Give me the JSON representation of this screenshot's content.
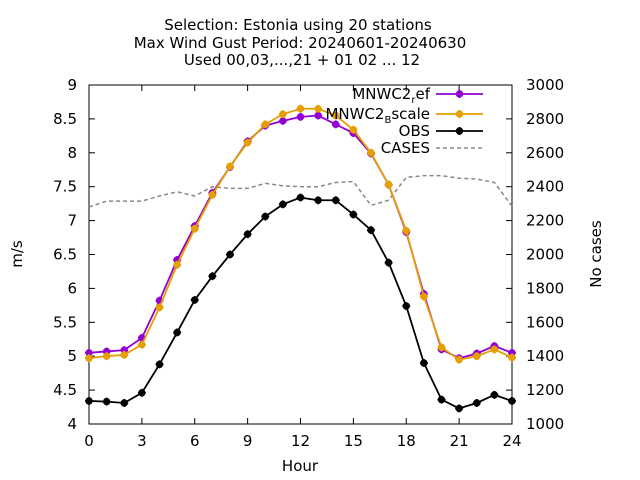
{
  "chart_data": {
    "type": "line",
    "title_lines": [
      "Selection: Estonia using    20 stations",
      "Max Wind Gust   Period: 20240601-20240630",
      "Used 00,03,...,21 + 01 02 ... 12"
    ],
    "xlabel": "Hour",
    "ylabel": "m/s",
    "y2label": "No cases",
    "xlim": [
      0,
      24
    ],
    "ylim": [
      4,
      9
    ],
    "y2lim": [
      1000,
      3000
    ],
    "xticks": [
      "0",
      "3",
      "6",
      "9",
      "12",
      "15",
      "18",
      "21",
      "24"
    ],
    "yticks": [
      "4",
      "4.5",
      "5",
      "5.5",
      "6",
      "6.5",
      "7",
      "7.5",
      "8",
      "8.5",
      "9"
    ],
    "y2ticks": [
      "1000",
      "1200",
      "1400",
      "1600",
      "1800",
      "2000",
      "2200",
      "2400",
      "2600",
      "2800",
      "3000"
    ],
    "grid": false,
    "legend_position": "top-right",
    "x": [
      0,
      1,
      2,
      3,
      4,
      5,
      6,
      7,
      8,
      9,
      10,
      11,
      12,
      13,
      14,
      15,
      16,
      17,
      18,
      19,
      20,
      21,
      22,
      23,
      24
    ],
    "series": [
      {
        "name": "MNWC2_ref",
        "legend_main": "MNWC2",
        "legend_sub": "r",
        "legend_rest": "ef",
        "color": "#9400d3",
        "axis": "y1",
        "style": "line-points",
        "values": [
          5.05,
          5.07,
          5.09,
          5.27,
          5.82,
          6.42,
          6.92,
          7.41,
          7.79,
          8.17,
          8.4,
          8.47,
          8.53,
          8.55,
          8.42,
          8.29,
          7.99,
          7.53,
          6.83,
          5.92,
          5.1,
          4.97,
          5.04,
          5.15,
          5.05
        ]
      },
      {
        "name": "MNWC2_Bscale",
        "legend_main": "MNWC2",
        "legend_sub": "B",
        "legend_rest": "scale",
        "color": "#e69f00",
        "axis": "y1",
        "style": "line-points",
        "values": [
          4.97,
          5.0,
          5.02,
          5.17,
          5.72,
          6.35,
          6.88,
          7.38,
          7.8,
          8.15,
          8.42,
          8.57,
          8.65,
          8.65,
          8.55,
          8.34,
          8.0,
          7.53,
          6.85,
          5.88,
          5.13,
          4.95,
          5.0,
          5.1,
          4.98
        ]
      },
      {
        "name": "OBS",
        "legend_main": "OBS",
        "legend_sub": "",
        "legend_rest": "",
        "color": "#000000",
        "axis": "y1",
        "style": "line-points",
        "values": [
          4.34,
          4.33,
          4.31,
          4.46,
          4.88,
          5.35,
          5.83,
          6.18,
          6.5,
          6.8,
          7.06,
          7.24,
          7.34,
          7.3,
          7.3,
          7.09,
          6.86,
          6.38,
          5.74,
          4.9,
          4.36,
          4.23,
          4.31,
          4.43,
          4.34
        ]
      },
      {
        "name": "CASES",
        "legend_main": "CASES",
        "legend_sub": "",
        "legend_rest": "",
        "color": "#888888",
        "axis": "y2",
        "style": "dashed",
        "values": [
          2280,
          2315,
          2315,
          2315,
          2345,
          2370,
          2345,
          2400,
          2390,
          2390,
          2420,
          2405,
          2400,
          2400,
          2425,
          2430,
          2290,
          2320,
          2455,
          2465,
          2465,
          2450,
          2445,
          2425,
          2285
        ]
      }
    ]
  }
}
